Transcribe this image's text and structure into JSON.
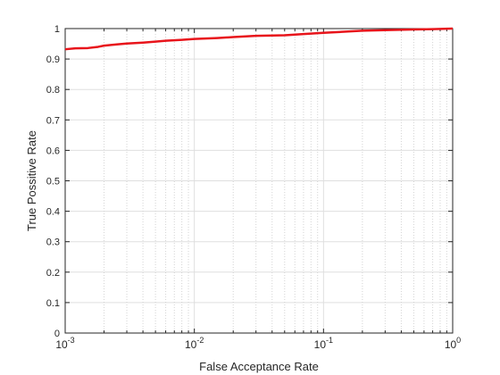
{
  "chart_data": {
    "type": "line",
    "title": "",
    "xlabel": "False Acceptance Rate",
    "ylabel": "True Possitive Rate",
    "x_scale": "log",
    "xlim": [
      0.001,
      1
    ],
    "ylim": [
      0,
      1
    ],
    "grid": true,
    "x_ticks": [
      {
        "value": 0.001,
        "base": "10",
        "exp": "-3"
      },
      {
        "value": 0.01,
        "base": "10",
        "exp": "-2"
      },
      {
        "value": 0.1,
        "base": "10",
        "exp": "-1"
      },
      {
        "value": 1,
        "base": "10",
        "exp": "0"
      }
    ],
    "y_ticks": [
      {
        "value": 0,
        "label": "0"
      },
      {
        "value": 0.1,
        "label": "0.1"
      },
      {
        "value": 0.2,
        "label": "0.2"
      },
      {
        "value": 0.3,
        "label": "0.3"
      },
      {
        "value": 0.4,
        "label": "0.4"
      },
      {
        "value": 0.5,
        "label": "0.5"
      },
      {
        "value": 0.6,
        "label": "0.6"
      },
      {
        "value": 0.7,
        "label": "0.7"
      },
      {
        "value": 0.8,
        "label": "0.8"
      },
      {
        "value": 0.9,
        "label": "0.9"
      },
      {
        "value": 1,
        "label": "1"
      }
    ],
    "series": [
      {
        "color": "#e8141b",
        "points": [
          [
            0.001,
            0.932
          ],
          [
            0.0012,
            0.935
          ],
          [
            0.0015,
            0.936
          ],
          [
            0.0018,
            0.94
          ],
          [
            0.002,
            0.944
          ],
          [
            0.0025,
            0.948
          ],
          [
            0.003,
            0.951
          ],
          [
            0.004,
            0.954
          ],
          [
            0.005,
            0.957
          ],
          [
            0.006,
            0.96
          ],
          [
            0.008,
            0.963
          ],
          [
            0.01,
            0.966
          ],
          [
            0.015,
            0.969
          ],
          [
            0.02,
            0.972
          ],
          [
            0.03,
            0.976
          ],
          [
            0.05,
            0.978
          ],
          [
            0.07,
            0.982
          ],
          [
            0.1,
            0.986
          ],
          [
            0.15,
            0.99
          ],
          [
            0.2,
            0.993
          ],
          [
            0.3,
            0.995
          ],
          [
            0.5,
            0.997
          ],
          [
            0.7,
            0.998
          ],
          [
            1,
            1.0
          ]
        ]
      }
    ]
  }
}
